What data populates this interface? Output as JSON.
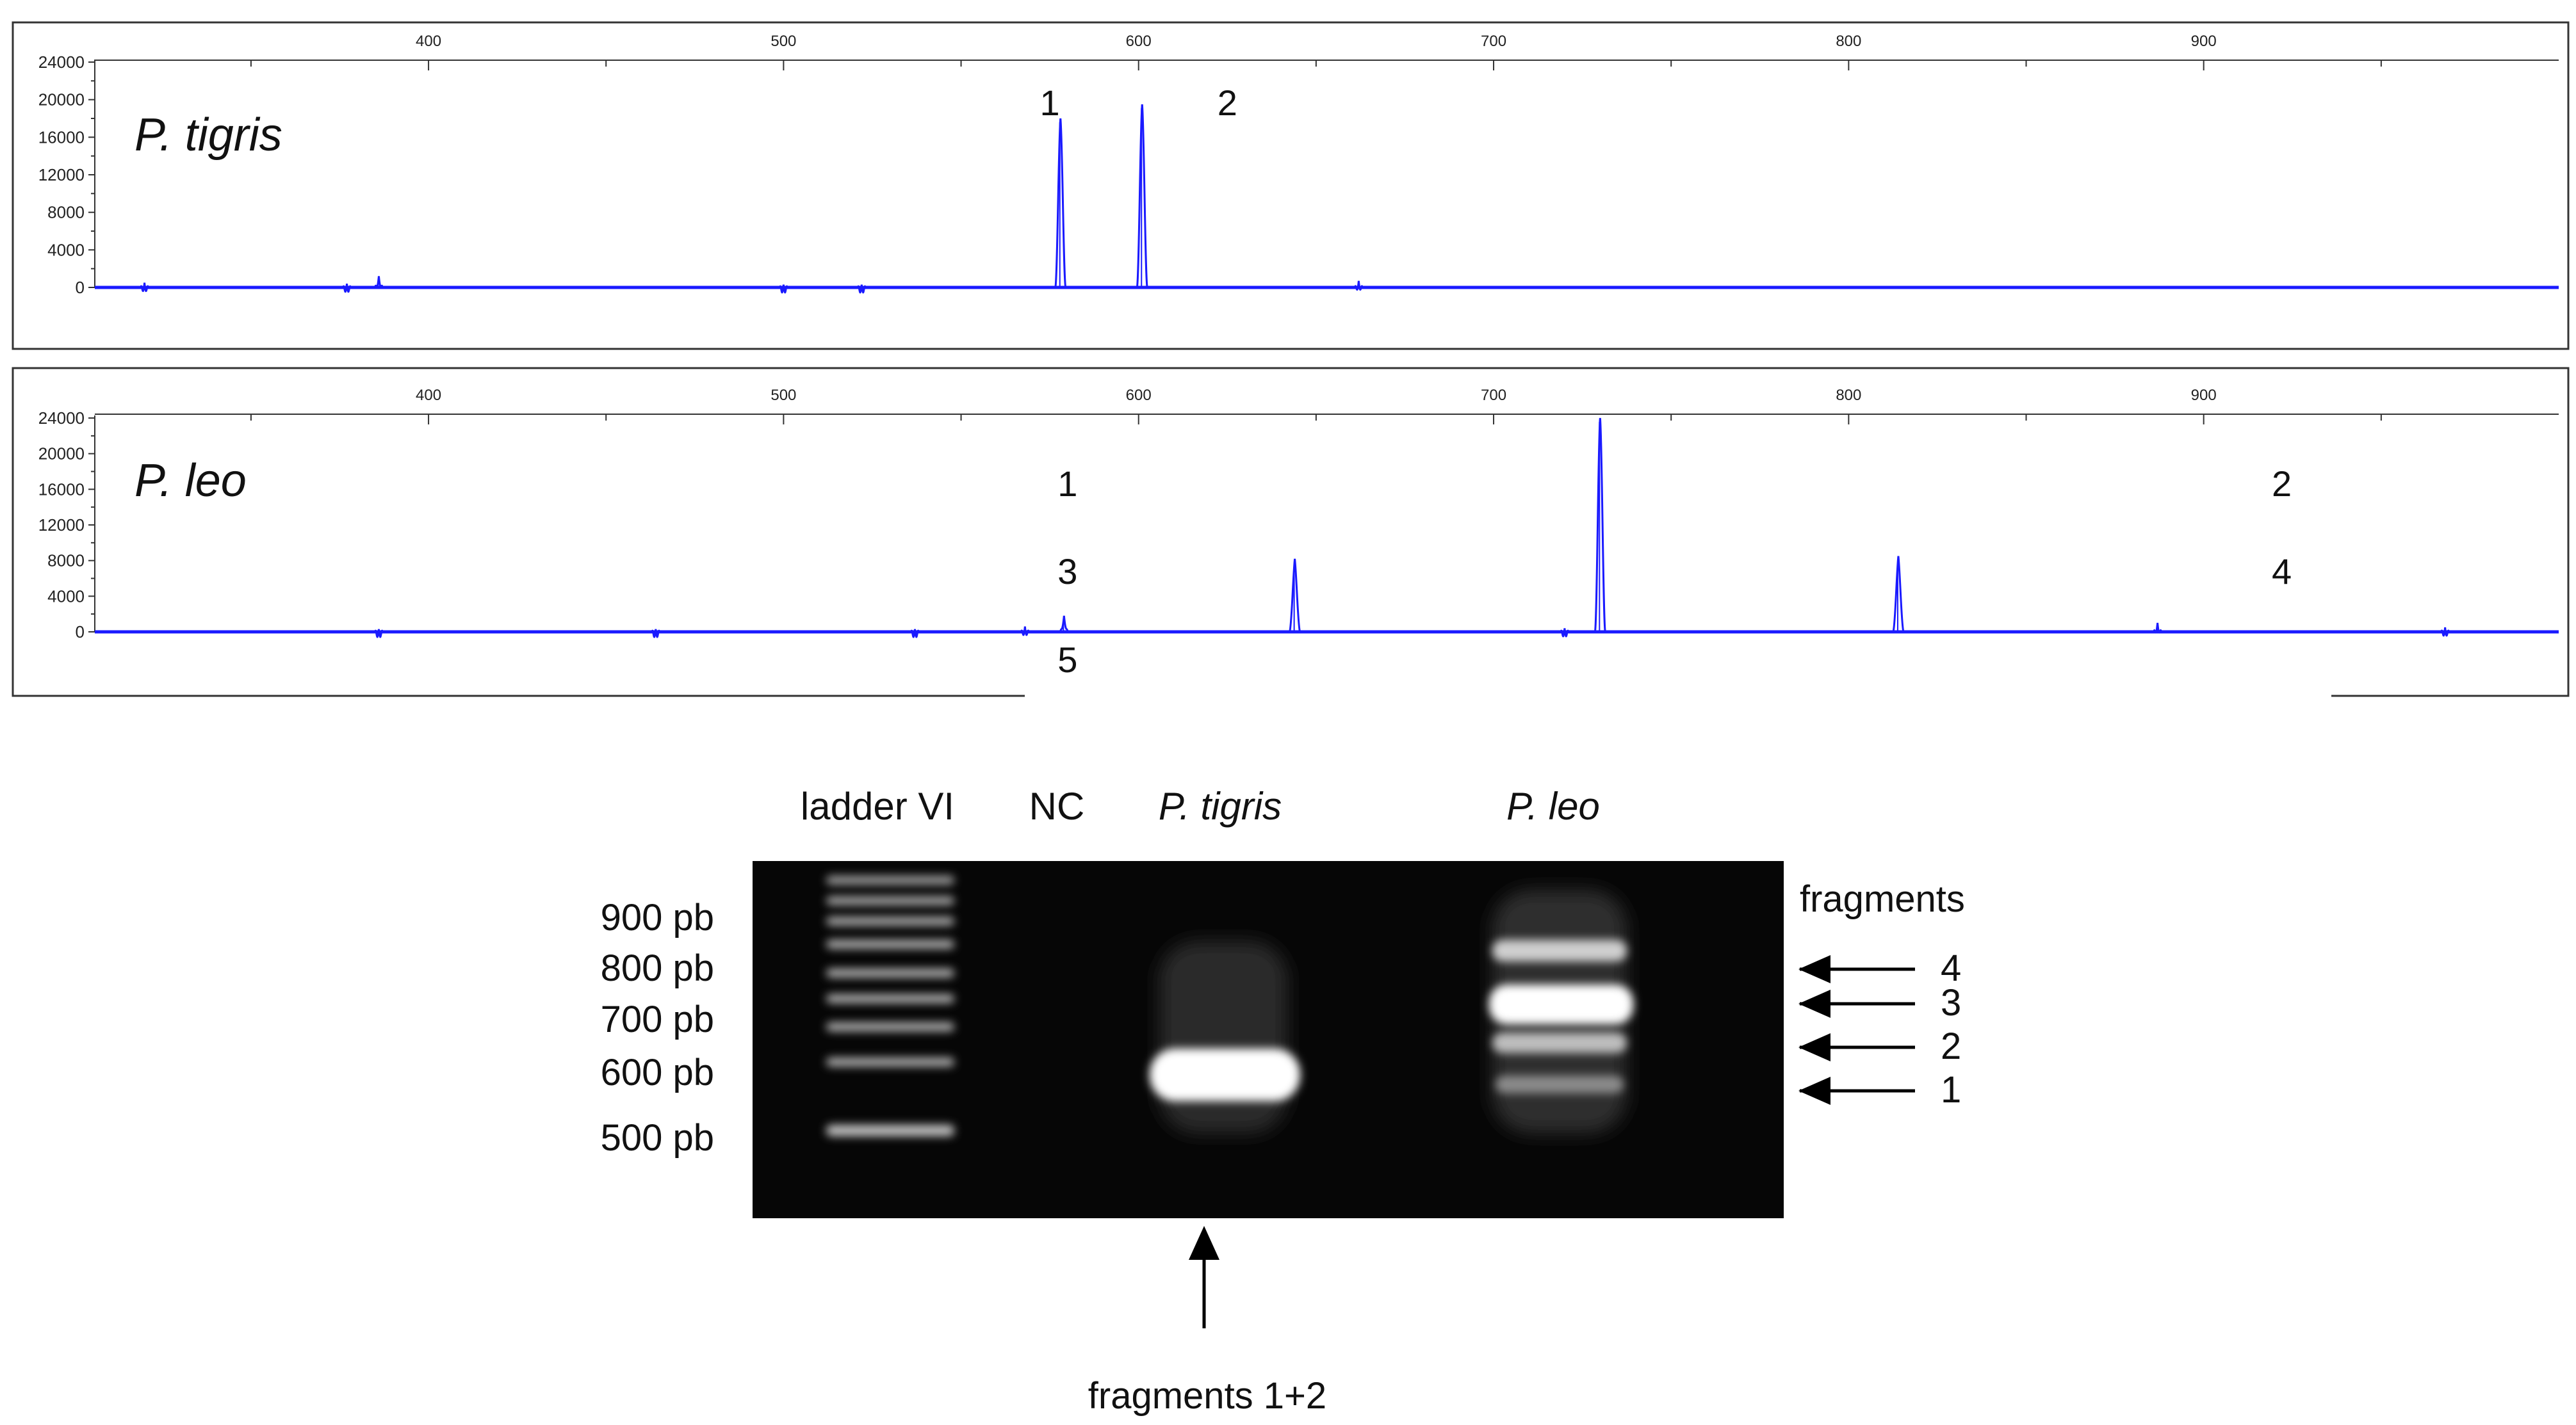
{
  "colors": {
    "trace": "#1a1aff",
    "panel_border": "#333333",
    "gel_background": "#060606",
    "band": "#ffffff",
    "text": "#111111"
  },
  "chart_data": [
    {
      "type": "line",
      "panel": "top",
      "title": "P. tigris",
      "x_tick_labels": [
        "400",
        "500",
        "600",
        "700",
        "800",
        "900"
      ],
      "y_tick_labels": [
        "24000",
        "20000",
        "16000",
        "12000",
        "8000",
        "4000",
        "0"
      ],
      "xlim": [
        306,
        1000
      ],
      "ylim": [
        0,
        24000
      ],
      "peaks": [
        {
          "x": 320,
          "y": 500
        },
        {
          "x": 377,
          "y": 400
        },
        {
          "x": 386,
          "y": 1200
        },
        {
          "x": 500,
          "y": 300
        },
        {
          "x": 522,
          "y": 300
        },
        {
          "x": 578,
          "y": 18000
        },
        {
          "x": 601,
          "y": 19500
        },
        {
          "x": 662,
          "y": 700
        }
      ],
      "annotations": [
        {
          "text": "1",
          "x": 575
        },
        {
          "text": "2",
          "x": 625
        }
      ]
    },
    {
      "type": "line",
      "panel": "bottom",
      "title": "P. leo",
      "x_tick_labels": [
        "400",
        "500",
        "600",
        "700",
        "800",
        "900"
      ],
      "y_tick_labels": [
        "24000",
        "20000",
        "16000",
        "12000",
        "8000",
        "4000",
        "0"
      ],
      "xlim": [
        306,
        1000
      ],
      "ylim": [
        0,
        24000
      ],
      "peaks": [
        {
          "x": 386,
          "y": 300
        },
        {
          "x": 464,
          "y": 300
        },
        {
          "x": 537,
          "y": 300
        },
        {
          "x": 568,
          "y": 600
        },
        {
          "x": 579,
          "y": 1800
        },
        {
          "x": 644,
          "y": 8200
        },
        {
          "x": 720,
          "y": 400
        },
        {
          "x": 730,
          "y": 24000
        },
        {
          "x": 814,
          "y": 8500
        },
        {
          "x": 887,
          "y": 1000
        },
        {
          "x": 968,
          "y": 500
        }
      ],
      "annotations": [
        {
          "text": "1",
          "x": 580,
          "row": "top"
        },
        {
          "text": "2",
          "x": 922,
          "row": "top"
        },
        {
          "text": "3",
          "x": 580,
          "row": "middle"
        },
        {
          "text": "4",
          "x": 922,
          "row": "middle"
        },
        {
          "text": "5",
          "x": 580,
          "row": "below"
        }
      ]
    }
  ],
  "gel": {
    "lane_labels": [
      {
        "text": "ladder VI",
        "italic": false
      },
      {
        "text": "NC",
        "italic": false
      },
      {
        "text": "P. tigris",
        "italic": true
      },
      {
        "text": "P. leo",
        "italic": true
      }
    ],
    "size_markers": [
      "900 pb",
      "800 pb",
      "700 pb",
      "600 pb",
      "500 pb"
    ],
    "fragments_label": "fragments",
    "fragment_numbers": [
      "4",
      "3",
      "2",
      "1"
    ],
    "bottom_label": "fragments 1+2"
  }
}
